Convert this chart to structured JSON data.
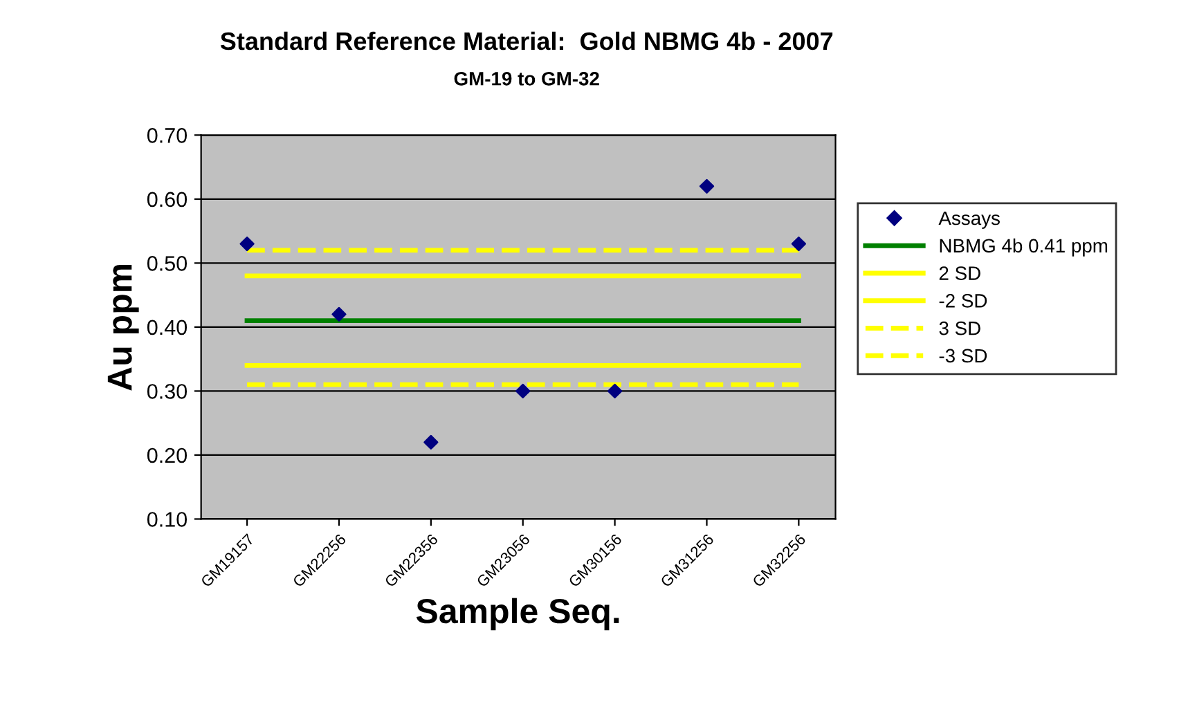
{
  "chart_data": {
    "type": "scatter",
    "title": "Standard Reference Material:  Gold NBMG 4b - 2007",
    "subtitle": "GM-19 to GM-32",
    "xlabel": "Sample Seq.",
    "ylabel": "Au ppm",
    "categories": [
      "GM19157",
      "GM22256",
      "GM22356",
      "GM23056",
      "GM30156",
      "GM31256",
      "GM32256"
    ],
    "series": [
      {
        "name": "Assays",
        "color": "#000080",
        "marker": "diamond",
        "values": [
          0.53,
          0.42,
          0.22,
          0.3,
          0.3,
          0.62,
          0.53
        ]
      },
      {
        "name": "NBMG 4b 0.41 ppm",
        "type": "line",
        "color": "#008000",
        "line_style": "solid",
        "values": [
          0.41,
          0.41,
          0.41,
          0.41,
          0.41,
          0.41,
          0.41
        ]
      },
      {
        "name": "2 SD",
        "type": "line",
        "color": "#ffff00",
        "line_style": "solid",
        "values": [
          0.48,
          0.48,
          0.48,
          0.48,
          0.48,
          0.48,
          0.48
        ]
      },
      {
        "name": "-2 SD",
        "type": "line",
        "color": "#ffff00",
        "line_style": "solid",
        "values": [
          0.34,
          0.34,
          0.34,
          0.34,
          0.34,
          0.34,
          0.34
        ]
      },
      {
        "name": "3 SD",
        "type": "line",
        "color": "#ffff00",
        "line_style": "dashed",
        "values": [
          0.52,
          0.52,
          0.52,
          0.52,
          0.52,
          0.52,
          0.52
        ]
      },
      {
        "name": "-3 SD",
        "type": "line",
        "color": "#ffff00",
        "line_style": "dashed",
        "values": [
          0.31,
          0.31,
          0.31,
          0.31,
          0.31,
          0.31,
          0.31
        ]
      }
    ],
    "ylim": [
      0.1,
      0.7
    ],
    "yticks": [
      {
        "value": 0.1,
        "label": "0.10"
      },
      {
        "value": 0.2,
        "label": "0.20"
      },
      {
        "value": 0.3,
        "label": "0.30"
      },
      {
        "value": 0.4,
        "label": "0.40"
      },
      {
        "value": 0.5,
        "label": "0.50"
      },
      {
        "value": 0.6,
        "label": "0.60"
      },
      {
        "value": 0.7,
        "label": "0.70"
      }
    ],
    "grid": "y",
    "legend": "right"
  }
}
